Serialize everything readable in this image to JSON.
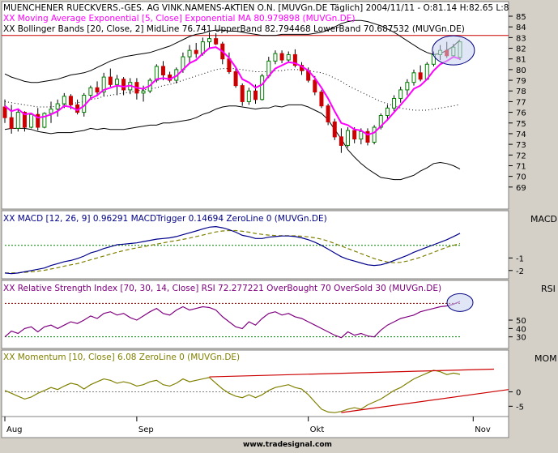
{
  "colors": {
    "panel_bg": "#ffffff",
    "frame_bg": "#d4d0c8",
    "candle_up": "#008000",
    "candle_down": "#cc0000",
    "ema": "#ff00ff",
    "bollinger": "#000000",
    "midline": "#000000",
    "resistance": "#cc0000",
    "highlight_fill": "#c8d2f0",
    "macd_line": "#00008b",
    "macd_trigger": "#808000",
    "macd_zero": "#008000",
    "rsi_line": "#800080",
    "rsi_overbought": "#800000",
    "rsi_oversold": "#008000",
    "momentum_line": "#808000",
    "trendline": "#cc0000"
  },
  "header": {
    "line1": "MUENCHENER RUECKVERS.-GES. AG VINK.NAMENS-AKTIEN O.N. [MUVGn.DE  Täglich] 2004/11/11 - O:81.14 H:82.65 L:8",
    "line2": "XX Moving Average Exponential [5, Close] Exponential MA 80.979898 (MUVGn.DE)",
    "line3": "XX Bollinger Bands [20, Close, 2] MidLine 76.741 UpperBand 82.794468 LowerBand 70.687532 (MUVGn.DE)"
  },
  "panels": {
    "macd_title": "XX MACD [12, 26, 9] 0.96291 MACDTrigger 0.14694 ZeroLine 0 (MUVGn.DE)",
    "macd_label": "MACD",
    "rsi_title": "XX Relative Strength Index [70, 30, 14, Close] RSI 72.277221 OverBought 70 OverSold 30 (MUVGn.DE)",
    "rsi_label": "RSI",
    "mom_title": "XX Momentum [10, Close] 6.08 ZeroLine 0 (MUVGn.DE)",
    "mom_label": "MOM"
  },
  "footer": {
    "brand": "www.tradesignal.com"
  },
  "chart_data": [
    {
      "panel": "price",
      "type": "candlestick",
      "ylim": [
        68,
        85
      ],
      "y_ticks": [
        69,
        70,
        71,
        72,
        73,
        74,
        75,
        76,
        77,
        78,
        79,
        80,
        81,
        82,
        83,
        84,
        85
      ],
      "x_labels": [
        "Aug",
        "Sep",
        "Okt",
        "Nov"
      ],
      "x_label_index": [
        0,
        20,
        46,
        71
      ],
      "resistance_level": 83.2,
      "ohlc": [
        [
          76.5,
          77.2,
          75.0,
          75.5
        ],
        [
          75.5,
          76.7,
          74.0,
          74.5
        ],
        [
          74.5,
          76.3,
          74.2,
          76.0
        ],
        [
          76.0,
          76.1,
          74.2,
          74.6
        ],
        [
          74.6,
          75.9,
          74.5,
          75.8
        ],
        [
          75.8,
          76.4,
          74.3,
          74.6
        ],
        [
          74.6,
          76.0,
          74.5,
          75.9
        ],
        [
          75.9,
          77.0,
          75.0,
          76.3
        ],
        [
          76.3,
          77.2,
          75.6,
          76.8
        ],
        [
          76.8,
          77.8,
          76.4,
          77.5
        ],
        [
          77.5,
          77.7,
          76.3,
          76.7
        ],
        [
          76.7,
          77.2,
          75.8,
          76.0
        ],
        [
          76.0,
          77.8,
          75.6,
          77.6
        ],
        [
          77.6,
          78.5,
          77.2,
          78.3
        ],
        [
          78.3,
          78.9,
          77.5,
          77.9
        ],
        [
          77.9,
          79.7,
          77.5,
          79.3
        ],
        [
          79.3,
          80.1,
          78.4,
          78.6
        ],
        [
          78.6,
          79.5,
          77.6,
          79.1
        ],
        [
          79.1,
          79.3,
          77.6,
          78.1
        ],
        [
          78.1,
          79.2,
          77.7,
          78.8
        ],
        [
          78.8,
          79.2,
          77.2,
          77.8
        ],
        [
          77.8,
          78.5,
          77.0,
          78.0
        ],
        [
          78.0,
          79.2,
          77.8,
          79.0
        ],
        [
          79.0,
          80.5,
          78.8,
          80.3
        ],
        [
          80.3,
          80.8,
          79.0,
          79.5
        ],
        [
          79.5,
          79.8,
          78.8,
          79.0
        ],
        [
          79.0,
          80.2,
          78.7,
          80.0
        ],
        [
          80.0,
          81.6,
          79.7,
          81.2
        ],
        [
          81.2,
          82.3,
          80.6,
          81.8
        ],
        [
          81.8,
          82.5,
          81.1,
          81.5
        ],
        [
          81.5,
          83.0,
          81.3,
          82.6
        ],
        [
          82.6,
          83.5,
          82.0,
          82.9
        ],
        [
          82.9,
          83.4,
          82.3,
          82.4
        ],
        [
          82.4,
          82.6,
          80.5,
          81.0
        ],
        [
          81.0,
          81.6,
          79.6,
          79.8
        ],
        [
          79.8,
          80.2,
          78.3,
          78.5
        ],
        [
          78.5,
          78.7,
          76.6,
          77.0
        ],
        [
          77.0,
          78.3,
          76.7,
          78.0
        ],
        [
          78.0,
          78.6,
          76.8,
          77.2
        ],
        [
          77.2,
          79.6,
          77.1,
          79.4
        ],
        [
          79.4,
          81.2,
          79.2,
          80.8
        ],
        [
          80.8,
          81.8,
          80.5,
          81.5
        ],
        [
          81.5,
          81.8,
          80.6,
          80.9
        ],
        [
          80.9,
          81.7,
          80.7,
          81.4
        ],
        [
          81.4,
          81.9,
          80.2,
          80.4
        ],
        [
          80.4,
          80.7,
          79.5,
          79.9
        ],
        [
          79.9,
          80.2,
          78.8,
          79.0
        ],
        [
          79.0,
          79.4,
          77.6,
          77.9
        ],
        [
          77.9,
          78.1,
          76.4,
          76.6
        ],
        [
          76.6,
          76.8,
          74.8,
          75.1
        ],
        [
          75.1,
          75.4,
          73.4,
          73.7
        ],
        [
          73.7,
          74.5,
          72.2,
          72.9
        ],
        [
          72.9,
          74.6,
          72.7,
          74.3
        ],
        [
          74.3,
          74.6,
          73.1,
          73.5
        ],
        [
          73.5,
          74.5,
          73.0,
          74.2
        ],
        [
          74.2,
          74.5,
          72.9,
          73.2
        ],
        [
          73.2,
          74.8,
          73.0,
          74.6
        ],
        [
          74.6,
          75.9,
          74.4,
          75.7
        ],
        [
          75.7,
          76.7,
          75.2,
          76.4
        ],
        [
          76.4,
          77.6,
          76.1,
          77.3
        ],
        [
          77.3,
          78.4,
          76.9,
          78.1
        ],
        [
          78.1,
          79.1,
          77.6,
          78.8
        ],
        [
          78.8,
          80.0,
          78.5,
          79.7
        ],
        [
          79.7,
          80.4,
          78.9,
          79.1
        ],
        [
          79.1,
          80.7,
          79.0,
          80.5
        ],
        [
          80.5,
          81.7,
          80.3,
          81.4
        ],
        [
          81.4,
          82.3,
          80.9,
          81.8
        ],
        [
          81.8,
          82.6,
          81.1,
          81.3
        ],
        [
          81.3,
          82.4,
          81.1,
          82.1
        ],
        [
          81.14,
          82.65,
          80.9,
          82.6
        ]
      ],
      "ema": [
        76.6,
        76.1,
        76.3,
        75.8,
        75.9,
        75.5,
        75.6,
        75.8,
        76.1,
        76.6,
        76.5,
        76.2,
        76.6,
        77.3,
        77.6,
        78.1,
        78.3,
        78.5,
        78.4,
        78.5,
        78.3,
        78.2,
        78.5,
        79.1,
        79.2,
        79.1,
        79.4,
        80.0,
        80.6,
        80.9,
        81.5,
        82.0,
        82.1,
        81.7,
        81.1,
        80.2,
        79.1,
        78.8,
        78.3,
        78.6,
        79.4,
        80.1,
        80.4,
        80.7,
        80.6,
        80.3,
        79.9,
        79.2,
        78.3,
        77.3,
        76.1,
        75.0,
        74.8,
        74.4,
        74.3,
        73.9,
        74.1,
        74.7,
        75.3,
        76.0,
        76.7,
        77.4,
        78.2,
        78.5,
        79.1,
        79.9,
        80.5,
        80.8,
        81.2,
        81.0
      ],
      "bollinger_mid": [
        77.0,
        76.9,
        76.8,
        76.7,
        76.6,
        76.5,
        76.5,
        76.5,
        76.6,
        76.7,
        76.8,
        76.9,
        77.0,
        77.2,
        77.3,
        77.5,
        77.6,
        77.7,
        77.8,
        77.9,
        78.0,
        78.1,
        78.2,
        78.3,
        78.5,
        78.6,
        78.8,
        79.0,
        79.2,
        79.4,
        79.6,
        79.8,
        80.0,
        80.1,
        80.1,
        80.1,
        80.0,
        79.9,
        79.8,
        79.8,
        79.8,
        79.9,
        79.9,
        80.0,
        80.0,
        80.0,
        79.9,
        79.8,
        79.7,
        79.5,
        79.2,
        78.9,
        78.5,
        78.2,
        77.9,
        77.6,
        77.3,
        77.0,
        76.8,
        76.6,
        76.4,
        76.3,
        76.2,
        76.2,
        76.2,
        76.3,
        76.4,
        76.5,
        76.6,
        76.74
      ],
      "bollinger_upper": [
        79.6,
        79.3,
        79.1,
        78.9,
        78.8,
        78.8,
        78.9,
        79.0,
        79.1,
        79.3,
        79.5,
        79.6,
        79.7,
        79.9,
        80.2,
        80.5,
        80.8,
        81.0,
        81.2,
        81.3,
        81.4,
        81.5,
        81.6,
        81.8,
        82.0,
        82.2,
        82.5,
        82.8,
        83.1,
        83.3,
        83.4,
        83.6,
        83.7,
        83.7,
        83.6,
        83.6,
        83.5,
        83.4,
        83.3,
        83.2,
        83.2,
        83.2,
        83.3,
        83.3,
        83.3,
        83.3,
        83.3,
        83.4,
        83.5,
        83.7,
        84.0,
        84.3,
        84.5,
        84.6,
        84.6,
        84.5,
        84.3,
        84.1,
        83.8,
        83.5,
        83.1,
        82.7,
        82.3,
        81.9,
        81.6,
        81.4,
        81.5,
        81.8,
        82.2,
        82.79
      ],
      "bollinger_lower": [
        74.4,
        74.5,
        74.5,
        74.5,
        74.4,
        74.2,
        74.1,
        74.0,
        74.1,
        74.1,
        74.1,
        74.2,
        74.3,
        74.5,
        74.4,
        74.5,
        74.4,
        74.4,
        74.4,
        74.5,
        74.6,
        74.7,
        74.8,
        74.8,
        75.0,
        75.0,
        75.1,
        75.2,
        75.3,
        75.5,
        75.8,
        76.0,
        76.3,
        76.5,
        76.6,
        76.6,
        76.5,
        76.4,
        76.3,
        76.4,
        76.4,
        76.6,
        76.5,
        76.7,
        76.7,
        76.7,
        76.5,
        76.2,
        75.9,
        75.3,
        74.4,
        73.5,
        72.5,
        71.8,
        71.2,
        70.7,
        70.3,
        69.9,
        69.8,
        69.7,
        69.7,
        69.9,
        70.1,
        70.5,
        70.8,
        71.2,
        71.3,
        71.2,
        71.0,
        70.69
      ]
    },
    {
      "panel": "macd",
      "type": "line",
      "ylim": [
        -2.4,
        1.6
      ],
      "y_ticks": [
        -2,
        -1
      ],
      "series": [
        {
          "name": "MACD",
          "values": [
            -2.2,
            -2.25,
            -2.2,
            -2.1,
            -2.0,
            -1.9,
            -1.8,
            -1.6,
            -1.45,
            -1.3,
            -1.2,
            -1.05,
            -0.85,
            -0.6,
            -0.45,
            -0.25,
            -0.1,
            0.05,
            0.1,
            0.15,
            0.2,
            0.3,
            0.4,
            0.5,
            0.55,
            0.6,
            0.7,
            0.85,
            1.0,
            1.15,
            1.3,
            1.45,
            1.5,
            1.4,
            1.25,
            1.05,
            0.8,
            0.7,
            0.55,
            0.55,
            0.65,
            0.7,
            0.75,
            0.75,
            0.7,
            0.6,
            0.45,
            0.25,
            0.0,
            -0.3,
            -0.6,
            -0.9,
            -1.1,
            -1.25,
            -1.4,
            -1.55,
            -1.6,
            -1.55,
            -1.4,
            -1.2,
            -1.0,
            -0.8,
            -0.55,
            -0.35,
            -0.15,
            0.05,
            0.25,
            0.45,
            0.7,
            0.96
          ]
        },
        {
          "name": "MACDTrigger",
          "values": [
            -2.2,
            -2.2,
            -2.18,
            -2.15,
            -2.1,
            -2.05,
            -1.98,
            -1.88,
            -1.78,
            -1.65,
            -1.55,
            -1.45,
            -1.3,
            -1.15,
            -1.0,
            -0.85,
            -0.7,
            -0.55,
            -0.42,
            -0.3,
            -0.2,
            -0.1,
            0.0,
            0.1,
            0.2,
            0.3,
            0.38,
            0.48,
            0.58,
            0.7,
            0.82,
            0.95,
            1.07,
            1.15,
            1.18,
            1.18,
            1.12,
            1.05,
            0.95,
            0.88,
            0.82,
            0.78,
            0.77,
            0.77,
            0.76,
            0.73,
            0.68,
            0.6,
            0.5,
            0.35,
            0.15,
            -0.05,
            -0.25,
            -0.45,
            -0.65,
            -0.85,
            -1.05,
            -1.2,
            -1.32,
            -1.38,
            -1.35,
            -1.25,
            -1.1,
            -0.95,
            -0.75,
            -0.55,
            -0.35,
            -0.15,
            0.0,
            0.15
          ]
        }
      ],
      "zero_line": 0
    },
    {
      "panel": "rsi",
      "type": "line",
      "ylim": [
        20,
        82
      ],
      "y_ticks": [
        30,
        40,
        50
      ],
      "overbought": 70,
      "oversold": 30,
      "series": [
        {
          "name": "RSI",
          "values": [
            30,
            37,
            34,
            40,
            42,
            36,
            42,
            44,
            40,
            44,
            48,
            46,
            50,
            55,
            52,
            58,
            60,
            56,
            58,
            53,
            50,
            55,
            60,
            64,
            58,
            56,
            62,
            66,
            62,
            64,
            66,
            65,
            62,
            54,
            48,
            42,
            40,
            48,
            44,
            52,
            58,
            60,
            56,
            58,
            54,
            52,
            48,
            44,
            40,
            36,
            32,
            29,
            36,
            32,
            34,
            31,
            30,
            38,
            44,
            48,
            52,
            54,
            56,
            60,
            62,
            64,
            66,
            67,
            69,
            72.3
          ]
        }
      ]
    },
    {
      "panel": "momentum",
      "type": "line",
      "ylim": [
        -8,
        10
      ],
      "y_ticks": [
        -5,
        0
      ],
      "series": [
        {
          "name": "Momentum",
          "values": [
            0.5,
            -0.5,
            -1.5,
            -2.5,
            -1.8,
            -0.5,
            0.5,
            1.5,
            0.8,
            2.0,
            3.0,
            2.5,
            1.0,
            2.5,
            3.5,
            4.5,
            4.0,
            3.0,
            3.5,
            3.0,
            2.0,
            2.5,
            3.5,
            4.0,
            2.5,
            2.0,
            3.0,
            4.5,
            3.5,
            4.0,
            4.5,
            5.0,
            3.0,
            1.0,
            -0.5,
            -1.5,
            -2.0,
            -1.0,
            -2.0,
            -1.0,
            0.5,
            1.5,
            2.0,
            2.5,
            1.5,
            1.0,
            -1.0,
            -3.5,
            -6.0,
            -7.0,
            -7.2,
            -6.8,
            -6.0,
            -5.5,
            -6.0,
            -4.5,
            -3.5,
            -2.5,
            -1.0,
            0.5,
            1.5,
            3.0,
            4.5,
            5.5,
            6.5,
            7.5,
            7.0,
            6.0,
            6.5,
            6.08
          ]
        }
      ],
      "zero_line": 0
    }
  ]
}
